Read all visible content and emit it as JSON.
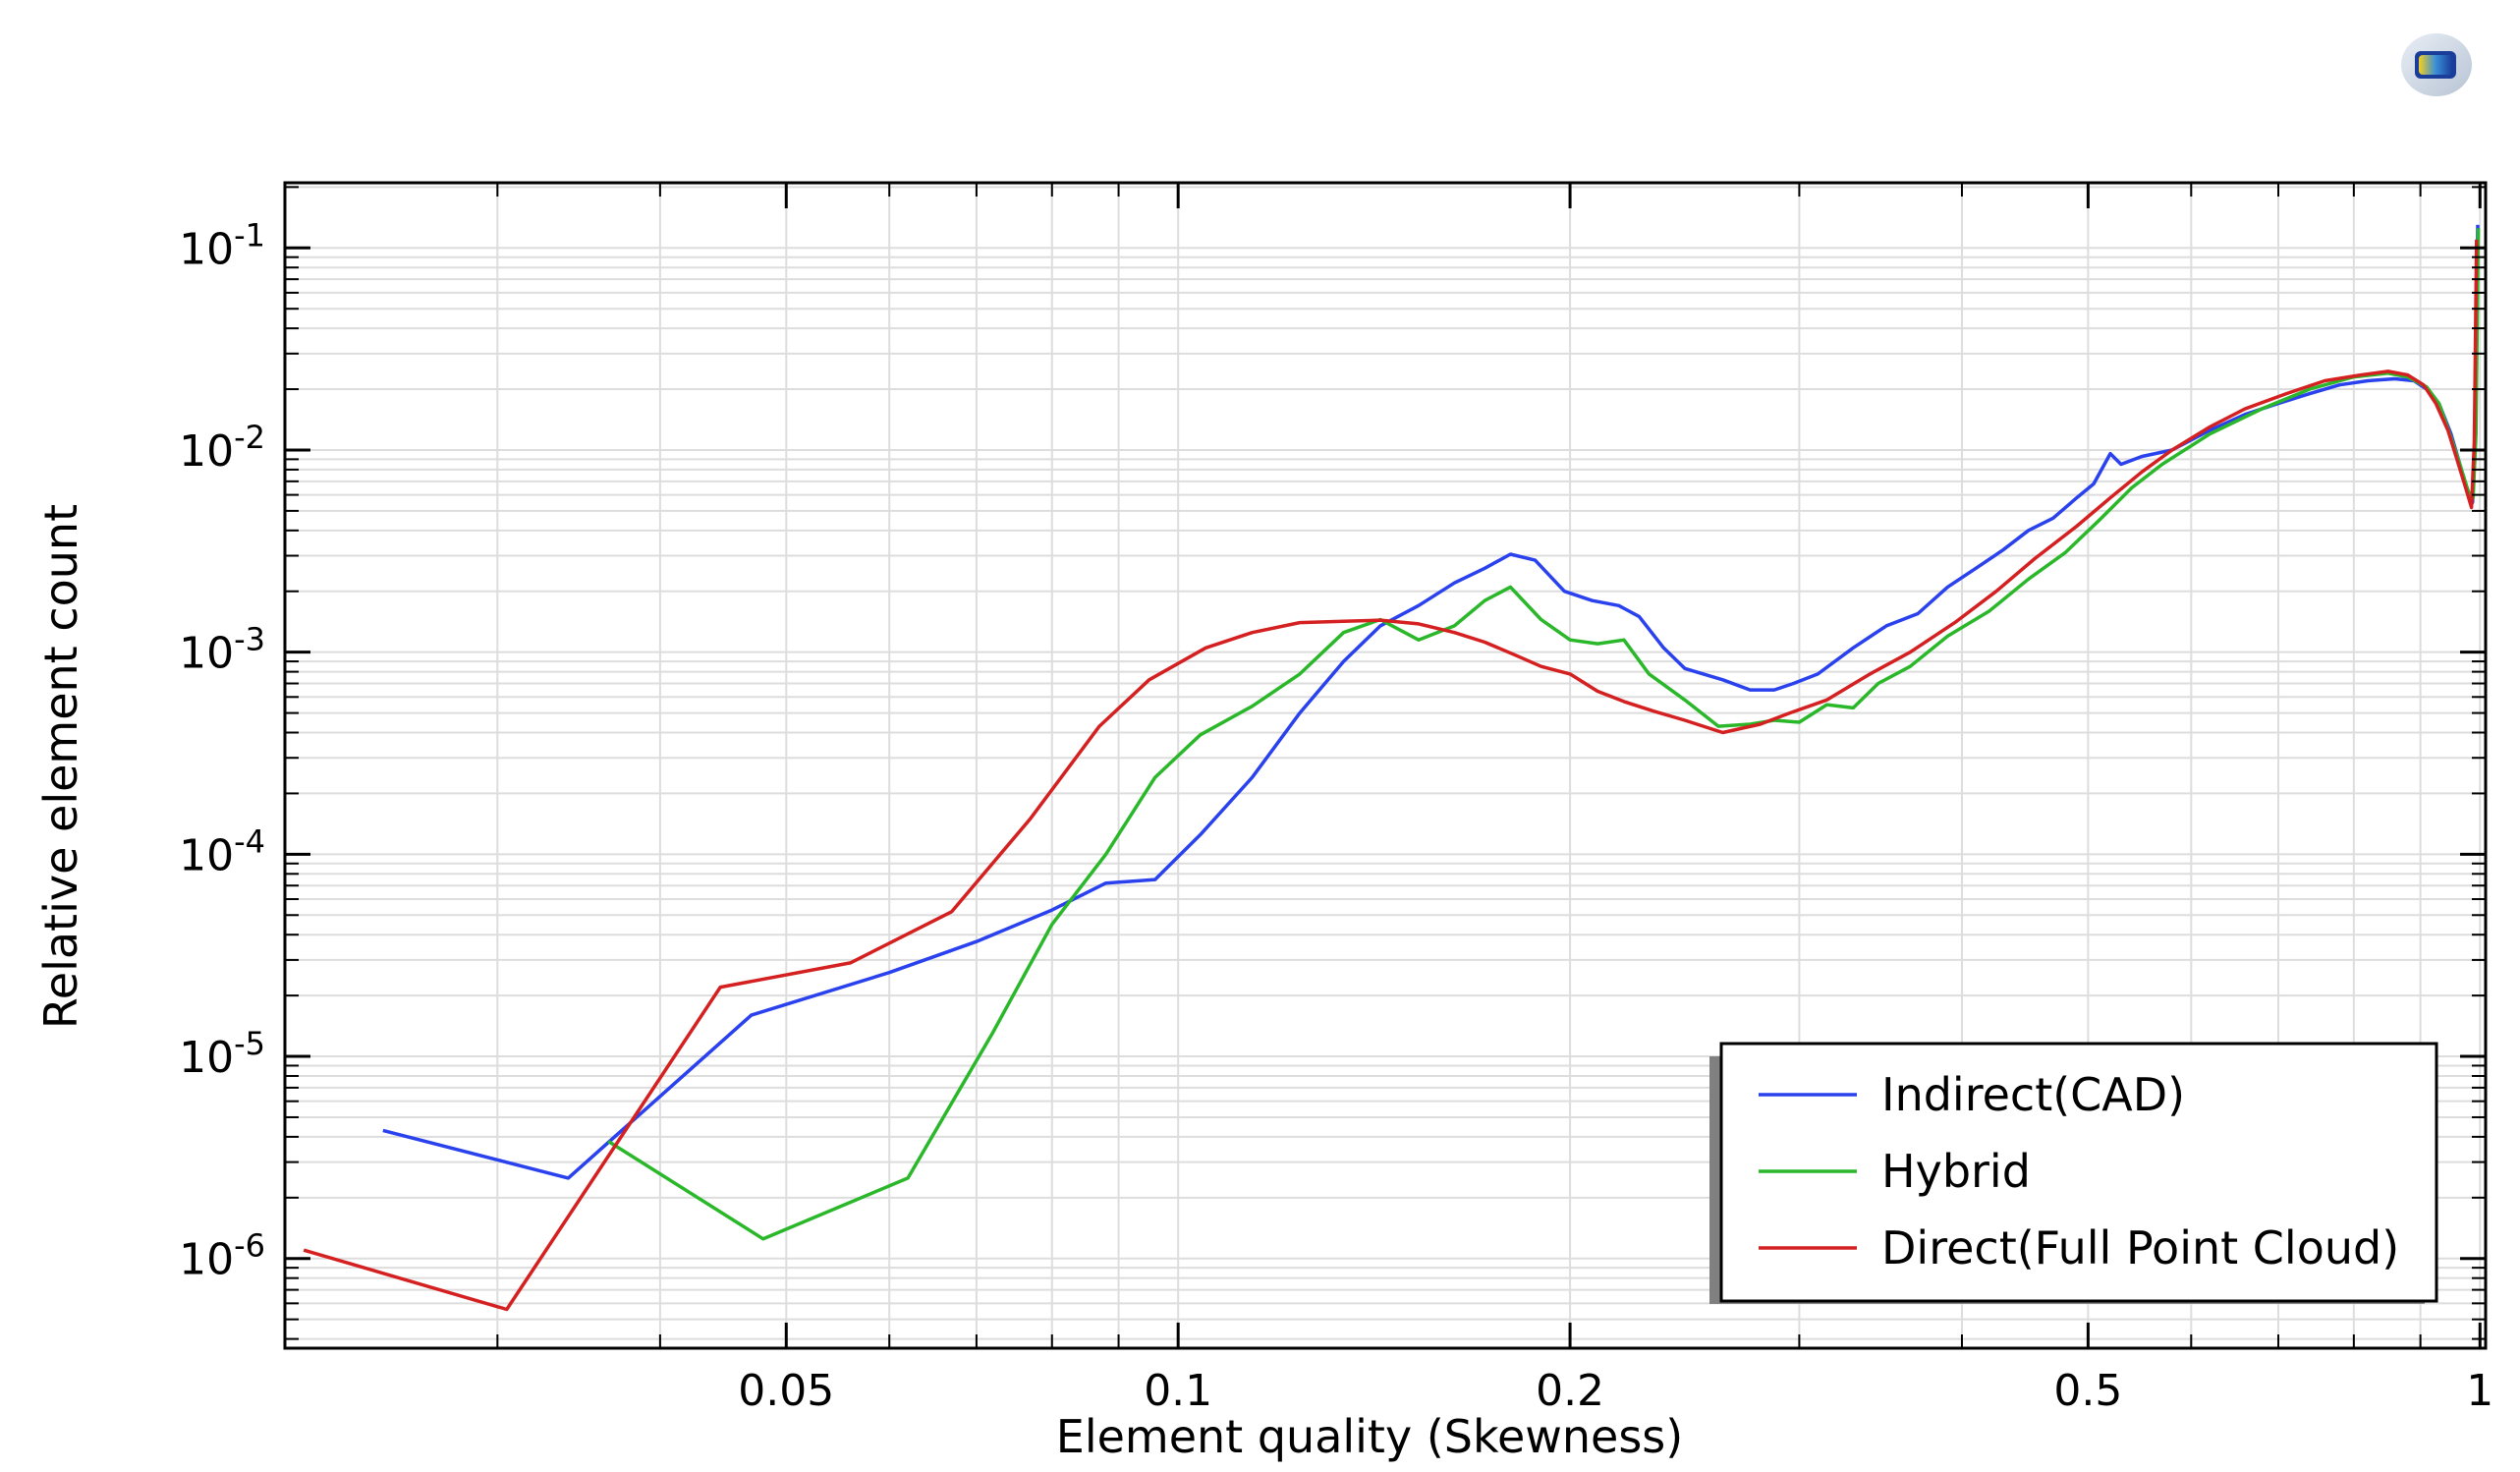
{
  "colors": {
    "background": "#ffffff",
    "axis": "#000000",
    "grid": "#dddddd",
    "legend_shadow": "#808080"
  },
  "icons": {
    "logo": "comsol-logo-icon"
  },
  "chart_data": {
    "type": "line",
    "xlabel": "Element quality (Skewness)",
    "ylabel": "Relative element count",
    "xscale": "log",
    "yscale": "log",
    "xlim": [
      0.0206,
      1.01
    ],
    "ylim": [
      3.6e-07,
      0.21
    ],
    "grid": true,
    "legend_position": "bottom-right",
    "x_ticks": [
      {
        "value": 0.05,
        "label": "0.05"
      },
      {
        "value": 0.1,
        "label": "0.1"
      },
      {
        "value": 0.2,
        "label": "0.2"
      },
      {
        "value": 0.5,
        "label": "0.5"
      },
      {
        "value": 1,
        "label": "1"
      }
    ],
    "y_ticks": [
      {
        "value": 0.1,
        "base": "10",
        "exp": "-1"
      },
      {
        "value": 0.01,
        "base": "10",
        "exp": "-2"
      },
      {
        "value": 0.001,
        "base": "10",
        "exp": "-3"
      },
      {
        "value": 0.0001,
        "base": "10",
        "exp": "-4"
      },
      {
        "value": 1e-05,
        "base": "10",
        "exp": "-5"
      },
      {
        "value": 1e-06,
        "base": "10",
        "exp": "-6"
      }
    ],
    "series": [
      {
        "name": "Indirect(CAD)",
        "color": "#2a41ee",
        "points": [
          [
            0.0245,
            4.3e-06
          ],
          [
            0.034,
            2.5e-06
          ],
          [
            0.047,
            1.6e-05
          ],
          [
            0.06,
            2.6e-05
          ],
          [
            0.07,
            3.7e-05
          ],
          [
            0.08,
            5.3e-05
          ],
          [
            0.088,
            7.2e-05
          ],
          [
            0.096,
            7.5e-05
          ],
          [
            0.104,
            0.000125
          ],
          [
            0.114,
            0.00024
          ],
          [
            0.124,
            0.0005
          ],
          [
            0.134,
            0.0009
          ],
          [
            0.143,
            0.00135
          ],
          [
            0.153,
            0.0017
          ],
          [
            0.163,
            0.0022
          ],
          [
            0.172,
            0.0026
          ],
          [
            0.18,
            0.00305
          ],
          [
            0.188,
            0.00285
          ],
          [
            0.198,
            0.002
          ],
          [
            0.208,
            0.0018
          ],
          [
            0.218,
            0.0017
          ],
          [
            0.226,
            0.0015
          ],
          [
            0.236,
            0.00105
          ],
          [
            0.245,
            0.00083
          ],
          [
            0.262,
            0.00073
          ],
          [
            0.275,
            0.00065
          ],
          [
            0.287,
            0.00065
          ],
          [
            0.297,
            0.0007
          ],
          [
            0.31,
            0.00078
          ],
          [
            0.33,
            0.00105
          ],
          [
            0.35,
            0.00135
          ],
          [
            0.37,
            0.00155
          ],
          [
            0.39,
            0.0021
          ],
          [
            0.41,
            0.0026
          ],
          [
            0.43,
            0.0032
          ],
          [
            0.45,
            0.004
          ],
          [
            0.47,
            0.0046
          ],
          [
            0.49,
            0.0058
          ],
          [
            0.505,
            0.0068
          ],
          [
            0.52,
            0.0096
          ],
          [
            0.53,
            0.0085
          ],
          [
            0.55,
            0.0093
          ],
          [
            0.58,
            0.01
          ],
          [
            0.62,
            0.0125
          ],
          [
            0.66,
            0.015
          ],
          [
            0.7,
            0.017
          ],
          [
            0.74,
            0.019
          ],
          [
            0.78,
            0.021
          ],
          [
            0.82,
            0.022
          ],
          [
            0.86,
            0.0225
          ],
          [
            0.89,
            0.022
          ],
          [
            0.91,
            0.02
          ],
          [
            0.93,
            0.017
          ],
          [
            0.95,
            0.012
          ],
          [
            0.965,
            0.0085
          ],
          [
            0.98,
            0.006
          ],
          [
            0.987,
            0.0055
          ],
          [
            0.992,
            0.012
          ],
          [
            0.996,
            0.13
          ]
        ]
      },
      {
        "name": "Hybrid",
        "color": "#2ab82a",
        "points": [
          [
            0.0365,
            3.8e-06
          ],
          [
            0.048,
            1.25e-06
          ],
          [
            0.062,
            2.5e-06
          ],
          [
            0.072,
            1.3e-05
          ],
          [
            0.08,
            4.5e-05
          ],
          [
            0.088,
            0.0001
          ],
          [
            0.096,
            0.00024
          ],
          [
            0.104,
            0.00039
          ],
          [
            0.114,
            0.00054
          ],
          [
            0.124,
            0.00078
          ],
          [
            0.134,
            0.00125
          ],
          [
            0.143,
            0.00145
          ],
          [
            0.153,
            0.00115
          ],
          [
            0.163,
            0.00135
          ],
          [
            0.172,
            0.0018
          ],
          [
            0.18,
            0.0021
          ],
          [
            0.19,
            0.00145
          ],
          [
            0.2,
            0.00115
          ],
          [
            0.21,
            0.0011
          ],
          [
            0.22,
            0.00115
          ],
          [
            0.23,
            0.00078
          ],
          [
            0.245,
            0.00058
          ],
          [
            0.26,
            0.00043
          ],
          [
            0.275,
            0.00044
          ],
          [
            0.287,
            0.00046
          ],
          [
            0.3,
            0.00045
          ],
          [
            0.315,
            0.00055
          ],
          [
            0.33,
            0.00053
          ],
          [
            0.345,
            0.0007
          ],
          [
            0.365,
            0.00085
          ],
          [
            0.39,
            0.0012
          ],
          [
            0.42,
            0.0016
          ],
          [
            0.45,
            0.0023
          ],
          [
            0.48,
            0.0031
          ],
          [
            0.51,
            0.0045
          ],
          [
            0.54,
            0.0065
          ],
          [
            0.57,
            0.0085
          ],
          [
            0.62,
            0.012
          ],
          [
            0.68,
            0.016
          ],
          [
            0.74,
            0.02
          ],
          [
            0.8,
            0.023
          ],
          [
            0.85,
            0.024
          ],
          [
            0.88,
            0.023
          ],
          [
            0.91,
            0.0205
          ],
          [
            0.93,
            0.017
          ],
          [
            0.95,
            0.0115
          ],
          [
            0.965,
            0.0085
          ],
          [
            0.98,
            0.0062
          ],
          [
            0.988,
            0.0058
          ],
          [
            0.993,
            0.012
          ],
          [
            0.997,
            0.125
          ]
        ]
      },
      {
        "name": "Direct(Full Point Cloud)",
        "color": "#d42020",
        "points": [
          [
            0.0213,
            1.1e-06
          ],
          [
            0.0305,
            5.6e-07
          ],
          [
            0.0445,
            2.2e-05
          ],
          [
            0.056,
            2.9e-05
          ],
          [
            0.067,
            5.2e-05
          ],
          [
            0.077,
            0.00015
          ],
          [
            0.087,
            0.00043
          ],
          [
            0.095,
            0.00073
          ],
          [
            0.105,
            0.00105
          ],
          [
            0.114,
            0.00125
          ],
          [
            0.124,
            0.0014
          ],
          [
            0.134,
            0.00142
          ],
          [
            0.143,
            0.00144
          ],
          [
            0.153,
            0.00138
          ],
          [
            0.163,
            0.00125
          ],
          [
            0.172,
            0.00112
          ],
          [
            0.182,
            0.00096
          ],
          [
            0.19,
            0.00085
          ],
          [
            0.2,
            0.00078
          ],
          [
            0.21,
            0.00064
          ],
          [
            0.22,
            0.00057
          ],
          [
            0.232,
            0.00051
          ],
          [
            0.245,
            0.00046
          ],
          [
            0.262,
            0.0004
          ],
          [
            0.28,
            0.00044
          ],
          [
            0.295,
            0.0005
          ],
          [
            0.315,
            0.00058
          ],
          [
            0.34,
            0.00078
          ],
          [
            0.365,
            0.001
          ],
          [
            0.395,
            0.0014
          ],
          [
            0.425,
            0.002
          ],
          [
            0.455,
            0.0029
          ],
          [
            0.49,
            0.0042
          ],
          [
            0.52,
            0.0058
          ],
          [
            0.55,
            0.0078
          ],
          [
            0.58,
            0.01
          ],
          [
            0.62,
            0.013
          ],
          [
            0.66,
            0.016
          ],
          [
            0.71,
            0.019
          ],
          [
            0.76,
            0.022
          ],
          [
            0.81,
            0.0235
          ],
          [
            0.85,
            0.0245
          ],
          [
            0.88,
            0.0235
          ],
          [
            0.905,
            0.021
          ],
          [
            0.925,
            0.017
          ],
          [
            0.945,
            0.0125
          ],
          [
            0.96,
            0.009
          ],
          [
            0.975,
            0.0065
          ],
          [
            0.985,
            0.0052
          ],
          [
            0.99,
            0.011
          ],
          [
            0.994,
            0.11
          ]
        ]
      }
    ]
  }
}
